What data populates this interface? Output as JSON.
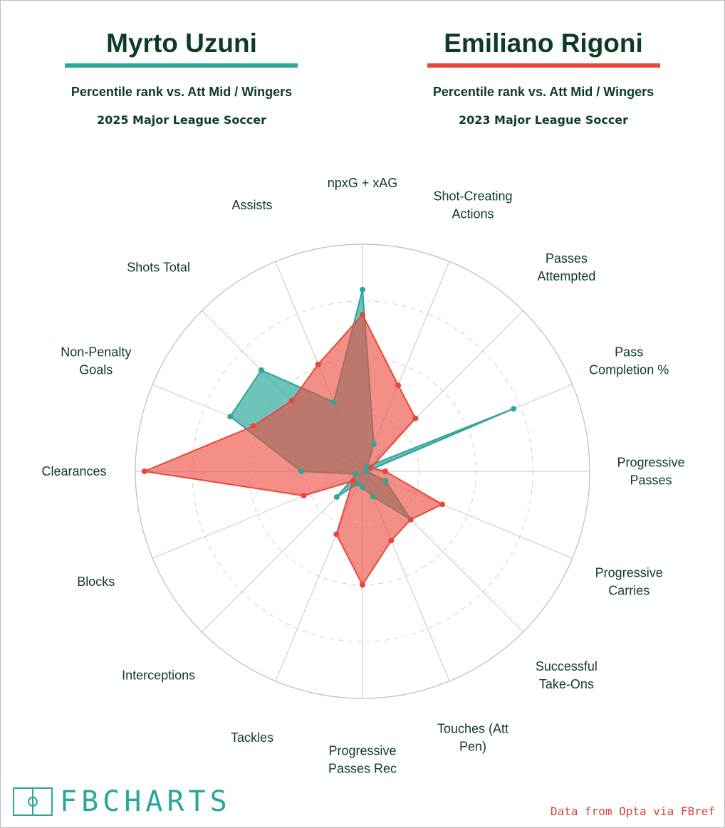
{
  "players": [
    {
      "name": "Myrto Uzuni",
      "subtitle": "Percentile rank vs. Att Mid / Wingers",
      "season": "2025 Major League Soccer",
      "color": "#2aa79b"
    },
    {
      "name": "Emiliano Rigoni",
      "subtitle": "Percentile rank vs. Att Mid / Wingers",
      "season": "2023 Major League Soccer",
      "color": "#e8473c"
    }
  ],
  "chart_data": {
    "type": "radar",
    "range": [
      0,
      100
    ],
    "rings": [
      25,
      50,
      75,
      100
    ],
    "axes": [
      "npxG + xAG",
      "Shot-Creating Actions",
      "Passes Attempted",
      "Pass Completion %",
      "Progressive Passes",
      "Progressive Carries",
      "Successful Take-Ons",
      "Touches (Att Pen)",
      "Progressive Passes Rec",
      "Tackles",
      "Interceptions",
      "Blocks",
      "Clearances",
      "Non-Penalty Goals",
      "Shots Total",
      "Assists"
    ],
    "series": [
      {
        "name": "Myrto Uzuni",
        "color": "#2aa79b",
        "values": [
          80,
          13,
          3,
          72,
          2,
          11,
          30,
          12,
          7,
          6,
          16,
          3,
          27,
          63,
          63,
          33
        ]
      },
      {
        "name": "Emiliano Rigoni",
        "color": "#e8473c",
        "values": [
          69,
          41,
          33,
          4,
          10,
          38,
          30,
          33,
          50,
          30,
          6,
          28,
          96,
          52,
          44,
          51
        ]
      }
    ]
  },
  "footer": {
    "logo_text": "FBCHARTS",
    "credit": "Data from Opta via FBref"
  }
}
